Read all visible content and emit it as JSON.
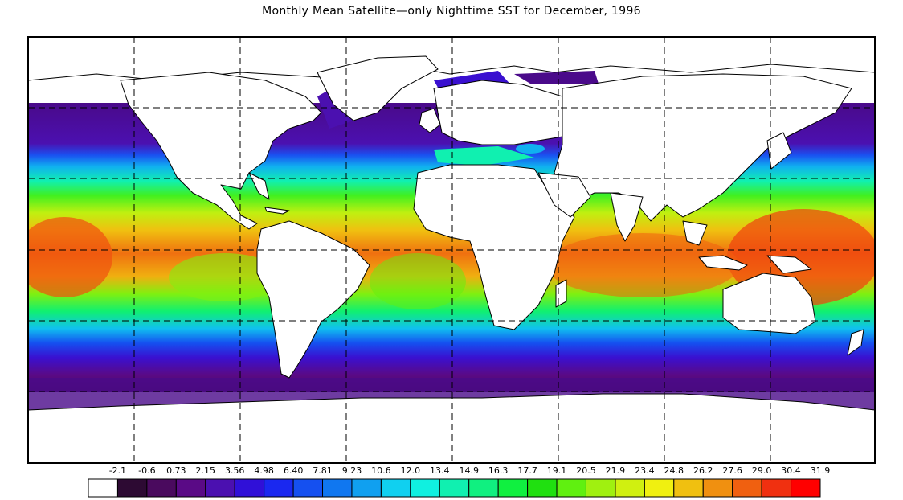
{
  "title": "Monthly Mean Satellite—only Nighttime SST for December, 1996",
  "colorbar": {
    "labels": [
      "-2.1",
      "-0.6",
      "0.73",
      "2.15",
      "3.56",
      "4.98",
      "6.40",
      "7.81",
      "9.23",
      "10.6",
      "12.0",
      "13.4",
      "14.9",
      "16.3",
      "17.7",
      "19.1",
      "20.5",
      "21.9",
      "23.4",
      "24.8",
      "26.2",
      "27.6",
      "29.0",
      "30.4",
      "31.9"
    ],
    "colors": [
      "#ffffff",
      "#2d0a33",
      "#4a0a5e",
      "#5a0a86",
      "#4b10b0",
      "#3010d8",
      "#1a28f0",
      "#1550f0",
      "#1077f0",
      "#10a0f0",
      "#10d0f0",
      "#10f0e0",
      "#10f0b0",
      "#10f080",
      "#10f040",
      "#20e010",
      "#60f010",
      "#a0f010",
      "#d0f010",
      "#f0f010",
      "#f0c010",
      "#f09010",
      "#f06010",
      "#f03010",
      "#ff0000"
    ]
  },
  "chart_data": {
    "type": "heatmap",
    "title": "Monthly Mean Satellite—only Nighttime SST for December, 1996",
    "projection": "equirectangular",
    "lon_range": [
      -180,
      180
    ],
    "lat_range": [
      -90,
      90
    ],
    "grid": true,
    "grid_lines_lon": [
      -135,
      -90,
      -45,
      0,
      45,
      90,
      135
    ],
    "grid_lines_lat": [
      -60,
      -30,
      0,
      30,
      60
    ],
    "color_scale_min": -2.1,
    "color_scale_max": 31.9,
    "color_scale_step": 1.42
  }
}
